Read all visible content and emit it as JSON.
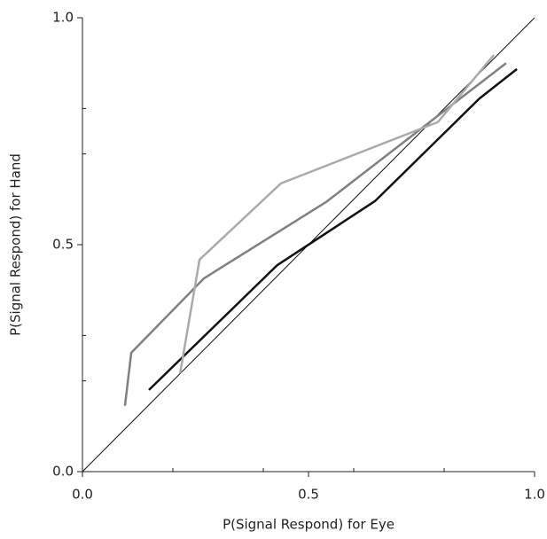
{
  "chart_data": {
    "type": "line",
    "x_label": "P(Signal Respond) for Eye",
    "y_label": "P(Signal Respond) for Hand",
    "xlim": [
      0,
      1
    ],
    "ylim": [
      0,
      1
    ],
    "xticks": [
      {
        "value": 0,
        "label": "0.0"
      },
      {
        "value": 0.5,
        "label": "0.5"
      },
      {
        "value": 1,
        "label": "1.0"
      }
    ],
    "yticks": [
      {
        "value": 0,
        "label": "0.0"
      },
      {
        "value": 0.5,
        "label": "0.5"
      },
      {
        "value": 1,
        "label": "1.0"
      }
    ],
    "xminorticks": [
      0.2,
      0.4,
      0.6,
      0.8
    ],
    "yminorticks": [
      0.2,
      0.3,
      0.7,
      0.8
    ],
    "diagonal": {
      "x": [
        0,
        1
      ],
      "values": [
        0,
        1
      ],
      "color": "#111111"
    },
    "series": [
      {
        "color": "#111111",
        "x": [
          0.147,
          0.431,
          0.647,
          0.878,
          0.961
        ],
        "values": [
          0.18,
          0.455,
          0.596,
          0.822,
          0.887
        ]
      },
      {
        "color": "#808080",
        "x": [
          0.094,
          0.108,
          0.269,
          0.539,
          0.937
        ],
        "values": [
          0.145,
          0.262,
          0.426,
          0.594,
          0.9
        ]
      },
      {
        "color": "#aaaaaa",
        "x": [
          0.216,
          0.259,
          0.439,
          0.786,
          0.91
        ],
        "values": [
          0.217,
          0.467,
          0.635,
          0.77,
          0.918
        ]
      }
    ]
  }
}
